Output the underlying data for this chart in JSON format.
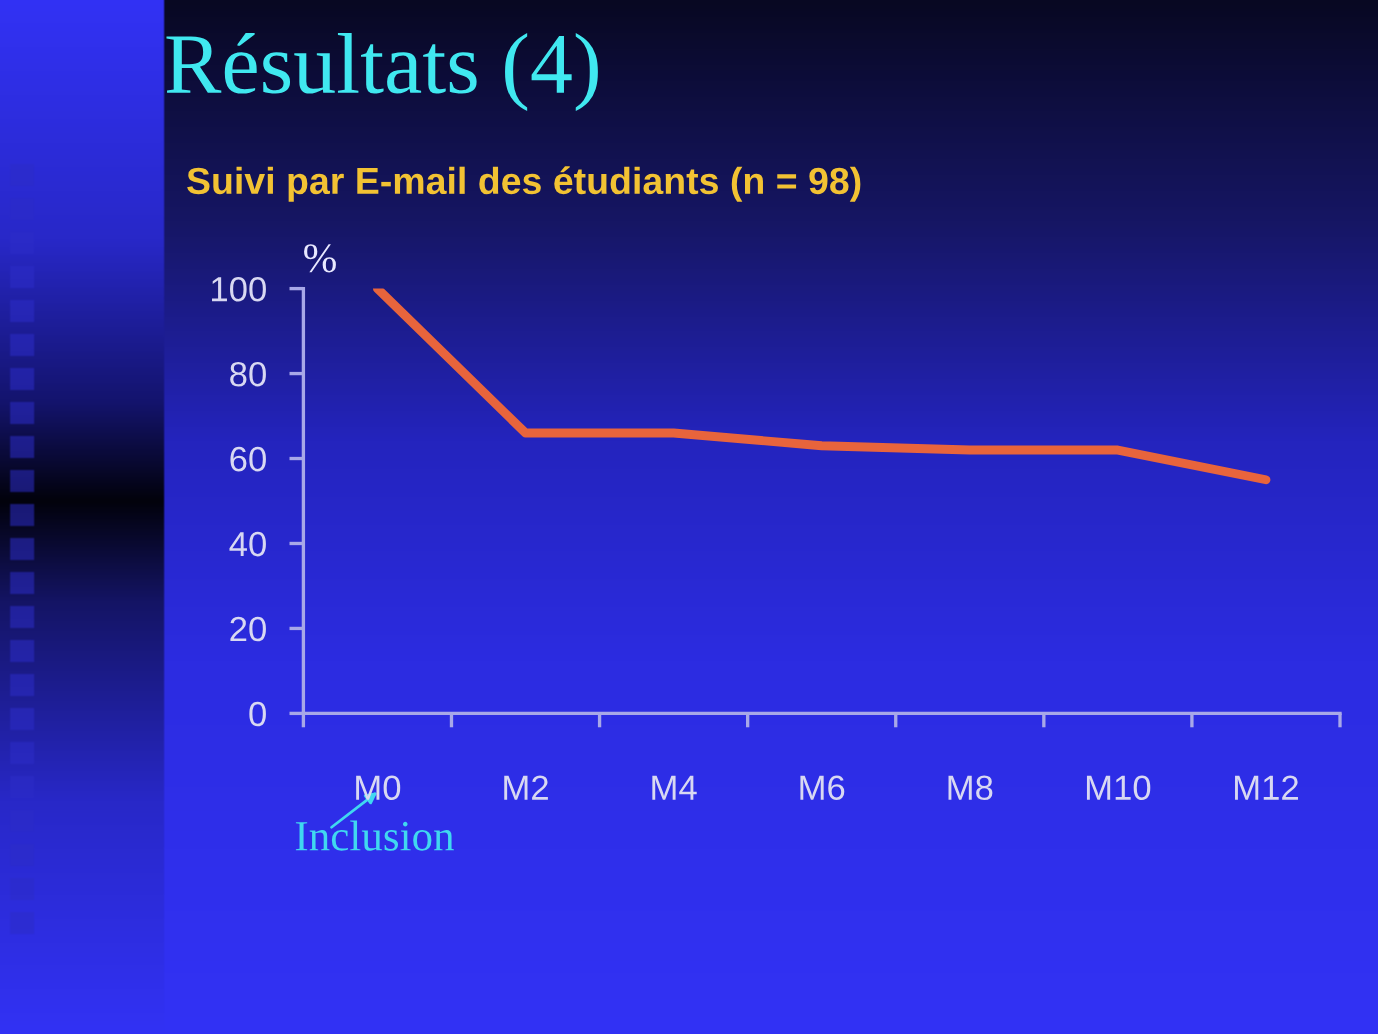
{
  "chart_data": {
    "type": "line",
    "title": "Résultats (4)",
    "subtitle": "Suivi par E-mail des étudiants (n = 98)",
    "ylabel": "%",
    "categories": [
      "M0",
      "M2",
      "M4",
      "M6",
      "M8",
      "M10",
      "M12"
    ],
    "series": [
      {
        "color": "#e8643c",
        "values": [
          100,
          66,
          66,
          63,
          62,
          62,
          55
        ]
      }
    ],
    "ylim": [
      0,
      100
    ],
    "yticks": [
      0,
      20,
      40,
      60,
      80,
      100
    ],
    "line_style": "solid",
    "annotations": [
      "Inclusion"
    ]
  }
}
